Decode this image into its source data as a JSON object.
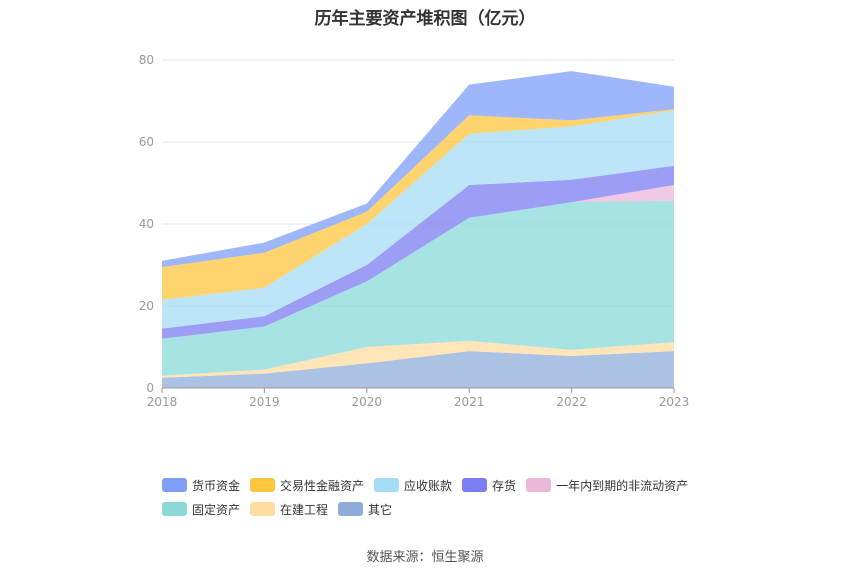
{
  "title": "历年主要资产堆积图（亿元）",
  "source": "数据来源：恒生聚源",
  "chart_data": {
    "type": "area",
    "title": "历年主要资产堆积图（亿元）",
    "stacked": true,
    "x": [
      "2018",
      "2019",
      "2020",
      "2021",
      "2022",
      "2023"
    ],
    "ylim": [
      0,
      80
    ],
    "yticks": [
      0,
      20,
      40,
      60,
      80
    ],
    "grid": true,
    "legend_position": "bottom",
    "series": [
      {
        "name": "其它",
        "color": "#8fadd9",
        "values": [
          2.5,
          3.5,
          6.0,
          9.0,
          7.8,
          9.0
        ]
      },
      {
        "name": "在建工程",
        "color": "#ffdca0",
        "values": [
          0.5,
          1.0,
          4.0,
          2.5,
          1.5,
          2.2
        ]
      },
      {
        "name": "固定资产",
        "color": "#8ad9d9",
        "values": [
          9.0,
          10.5,
          16.0,
          30.0,
          36.0,
          34.5
        ]
      },
      {
        "name": "一年内到期的非流动资产",
        "color": "#eab8d8",
        "values": [
          0,
          0,
          0,
          0,
          0,
          3.8
        ]
      },
      {
        "name": "存货",
        "color": "#7b7ef2",
        "values": [
          2.5,
          2.5,
          4.0,
          8.0,
          5.5,
          4.7
        ]
      },
      {
        "name": "应收账款",
        "color": "#a6dcf5",
        "values": [
          7.0,
          7.0,
          10.0,
          12.5,
          13.0,
          13.5
        ]
      },
      {
        "name": "交易性金融资产",
        "color": "#ffc53d",
        "values": [
          8.0,
          8.5,
          3.0,
          4.5,
          1.5,
          0.3
        ]
      },
      {
        "name": "货币资金",
        "color": "#7e9ef8",
        "values": [
          1.5,
          2.5,
          2.0,
          7.5,
          12.0,
          5.5
        ]
      }
    ]
  },
  "legend": {
    "rows": [
      [
        {
          "label": "货币资金",
          "color": "#7e9ef8"
        },
        {
          "label": "交易性金融资产",
          "color": "#ffc53d"
        },
        {
          "label": "应收账款",
          "color": "#a6dcf5"
        },
        {
          "label": "存货",
          "color": "#7b7ef2"
        },
        {
          "label": "一年内到期的非流动资产",
          "color": "#eab8d8"
        }
      ],
      [
        {
          "label": "固定资产",
          "color": "#8ad9d9"
        },
        {
          "label": "在建工程",
          "color": "#ffdca0"
        },
        {
          "label": "其它",
          "color": "#8fadd9"
        }
      ]
    ]
  }
}
